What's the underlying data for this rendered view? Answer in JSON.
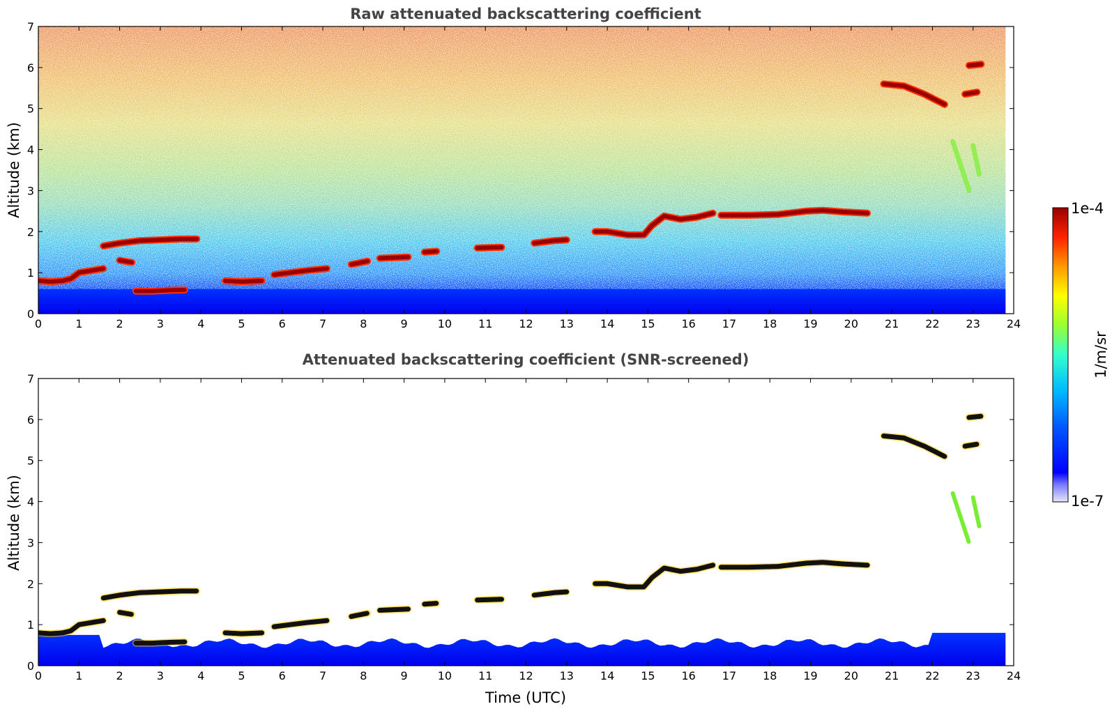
{
  "colors": {
    "colormap": [
      "#e6e6f8",
      "#0000ff",
      "#0066ff",
      "#00ccff",
      "#33ffcc",
      "#99ff33",
      "#ffff00",
      "#ff9900",
      "#ff2200",
      "#990000"
    ],
    "axis": "#000000",
    "title": "#444444",
    "cloud_screened": "#111111"
  },
  "chart_data": [
    {
      "type": "heatmap",
      "title": "Raw attenuated backscattering coefficient",
      "xlabel": "",
      "ylabel": "Altitude (km)",
      "xlim": [
        0,
        24
      ],
      "ylim": [
        0,
        7
      ],
      "xticks": [
        "0",
        "1",
        "2",
        "3",
        "4",
        "5",
        "6",
        "7",
        "8",
        "9",
        "10",
        "11",
        "12",
        "13",
        "14",
        "15",
        "16",
        "17",
        "18",
        "19",
        "20",
        "21",
        "22",
        "23",
        "24"
      ],
      "yticks": [
        "0",
        "1",
        "2",
        "3",
        "4",
        "5",
        "6",
        "7"
      ],
      "data_end_time": 23.8,
      "cloud_layers": [
        {
          "t": [
            0,
            0.3,
            0.6,
            0.8,
            1.0,
            1.3,
            1.6
          ],
          "h": [
            0.8,
            0.78,
            0.8,
            0.85,
            1.0,
            1.05,
            1.1
          ]
        },
        {
          "t": [
            1.6,
            2.0,
            2.5,
            3.0,
            3.5,
            3.9
          ],
          "h": [
            1.65,
            1.72,
            1.78,
            1.8,
            1.82,
            1.82
          ]
        },
        {
          "t": [
            2.0,
            2.3
          ],
          "h": [
            1.3,
            1.25
          ]
        },
        {
          "t": [
            2.4,
            2.8,
            3.2,
            3.6
          ],
          "h": [
            0.55,
            0.55,
            0.57,
            0.58
          ]
        },
        {
          "t": [
            4.6,
            5.0,
            5.5
          ],
          "h": [
            0.8,
            0.78,
            0.8
          ]
        },
        {
          "t": [
            5.8,
            6.2,
            6.6,
            7.1
          ],
          "h": [
            0.95,
            1.0,
            1.05,
            1.1
          ]
        },
        {
          "t": [
            7.7,
            8.1
          ],
          "h": [
            1.2,
            1.28
          ]
        },
        {
          "t": [
            8.4,
            9.1
          ],
          "h": [
            1.35,
            1.38
          ]
        },
        {
          "t": [
            9.5,
            9.8
          ],
          "h": [
            1.5,
            1.52
          ]
        },
        {
          "t": [
            10.8,
            11.4
          ],
          "h": [
            1.6,
            1.62
          ]
        },
        {
          "t": [
            12.2,
            12.7,
            13.0
          ],
          "h": [
            1.72,
            1.78,
            1.8
          ]
        },
        {
          "t": [
            13.7,
            14.0,
            14.5,
            14.9,
            15.1,
            15.4,
            15.8,
            16.2,
            16.6
          ],
          "h": [
            2.0,
            2.0,
            1.92,
            1.92,
            2.15,
            2.38,
            2.3,
            2.35,
            2.45
          ]
        },
        {
          "t": [
            16.8,
            17.5,
            18.2,
            18.9,
            19.3,
            19.8,
            20.4
          ],
          "h": [
            2.4,
            2.4,
            2.42,
            2.5,
            2.52,
            2.48,
            2.45
          ]
        },
        {
          "t": [
            20.8,
            21.3,
            21.8,
            22.3
          ],
          "h": [
            5.6,
            5.55,
            5.35,
            5.1
          ]
        },
        {
          "t": [
            22.8,
            23.1
          ],
          "h": [
            5.35,
            5.4
          ]
        },
        {
          "t": [
            22.9,
            23.2
          ],
          "h": [
            6.05,
            6.08
          ]
        }
      ],
      "virga": [
        {
          "t": [
            22.5,
            22.9
          ],
          "h": [
            4.2,
            3.0
          ]
        },
        {
          "t": [
            23.0,
            23.15
          ],
          "h": [
            4.1,
            3.4
          ]
        }
      ]
    },
    {
      "type": "heatmap",
      "title": "Attenuated backscattering coefficient (SNR-screened)",
      "xlabel": "Time (UTC)",
      "ylabel": "Altitude (km)",
      "xlim": [
        0,
        24
      ],
      "ylim": [
        0,
        7
      ],
      "xticks": [
        "0",
        "1",
        "2",
        "3",
        "4",
        "5",
        "6",
        "7",
        "8",
        "9",
        "10",
        "11",
        "12",
        "13",
        "14",
        "15",
        "16",
        "17",
        "18",
        "19",
        "20",
        "21",
        "22",
        "23",
        "24"
      ],
      "yticks": [
        "0",
        "1",
        "2",
        "3",
        "4",
        "5",
        "6",
        "7"
      ],
      "data_end_time": 23.8
    }
  ],
  "colorbar": {
    "label": "1/m/sr",
    "max_label": "1e-4",
    "min_label": "1e-7",
    "scale": "log",
    "range": [
      1e-07,
      0.0001
    ]
  }
}
